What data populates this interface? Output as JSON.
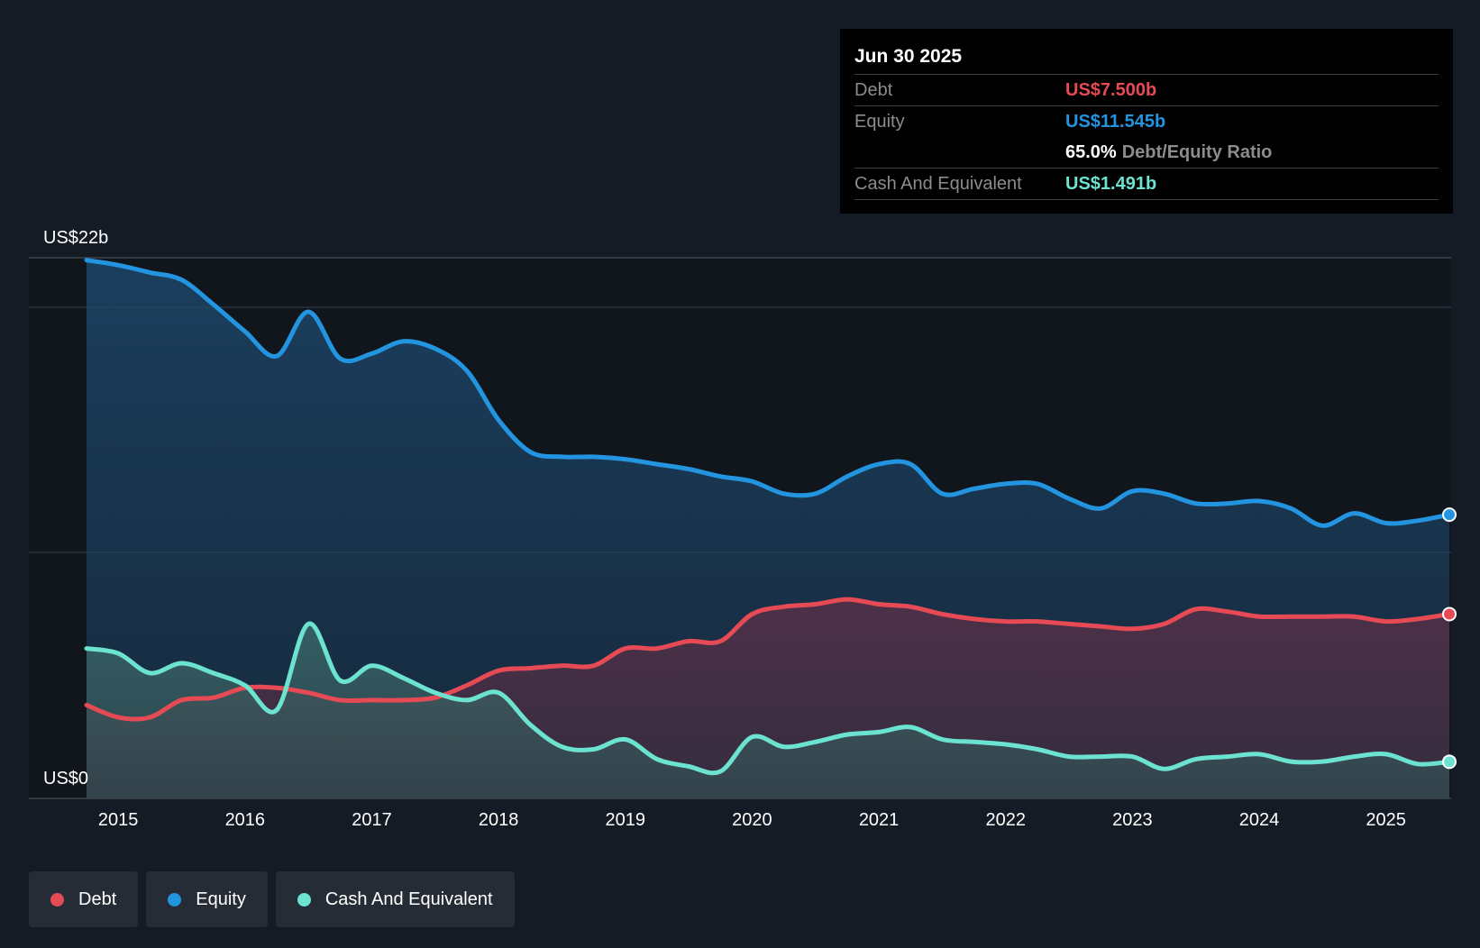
{
  "tooltip": {
    "date": "Jun 30 2025",
    "debt_label": "Debt",
    "debt_value": "US$7.500b",
    "equity_label": "Equity",
    "equity_value": "US$11.545b",
    "ratio_value": "65.0%",
    "ratio_label": "Debt/Equity Ratio",
    "cash_label": "Cash And Equivalent",
    "cash_value": "US$1.491b"
  },
  "legend": {
    "debt": "Debt",
    "equity": "Equity",
    "cash": "Cash And Equivalent"
  },
  "colors": {
    "background": "#151b24",
    "debt": "#e64b55",
    "equity": "#2394df",
    "cash": "#6ce3d0"
  },
  "chart_data": {
    "type": "area",
    "title": "",
    "xlabel": "",
    "ylabel": "",
    "x_ticks": [
      "2015",
      "2016",
      "2017",
      "2018",
      "2019",
      "2020",
      "2021",
      "2022",
      "2023",
      "2024",
      "2025"
    ],
    "y_axis_labels": {
      "top": "US$22b",
      "bottom": "US$0"
    },
    "ylim": [
      0,
      22
    ],
    "xlim": [
      2014.75,
      2025.5
    ],
    "grid": true,
    "series": [
      {
        "name": "Equity",
        "color_key": "equity",
        "x": [
          2014.75,
          2015.0,
          2015.25,
          2015.5,
          2015.75,
          2016.0,
          2016.25,
          2016.5,
          2016.75,
          2017.0,
          2017.25,
          2017.5,
          2017.75,
          2018.0,
          2018.25,
          2018.5,
          2018.75,
          2019.0,
          2019.25,
          2019.5,
          2019.75,
          2020.0,
          2020.25,
          2020.5,
          2020.75,
          2021.0,
          2021.25,
          2021.5,
          2021.75,
          2022.0,
          2022.25,
          2022.5,
          2022.75,
          2023.0,
          2023.25,
          2023.5,
          2023.75,
          2024.0,
          2024.25,
          2024.5,
          2024.75,
          2025.0,
          2025.25,
          2025.5
        ],
        "values": [
          21.9,
          21.7,
          21.4,
          21.1,
          20.1,
          19.0,
          18.0,
          19.8,
          17.9,
          18.1,
          18.6,
          18.3,
          17.4,
          15.4,
          14.1,
          13.9,
          13.9,
          13.8,
          13.6,
          13.4,
          13.1,
          12.9,
          12.4,
          12.4,
          13.1,
          13.6,
          13.6,
          12.4,
          12.6,
          12.8,
          12.8,
          12.2,
          11.8,
          12.5,
          12.4,
          12.0,
          12.0,
          12.1,
          11.8,
          11.1,
          11.6,
          11.2,
          11.3,
          11.545
        ]
      },
      {
        "name": "Debt",
        "color_key": "debt",
        "x": [
          2014.75,
          2015.0,
          2015.25,
          2015.5,
          2015.75,
          2016.0,
          2016.25,
          2016.5,
          2016.75,
          2017.0,
          2017.25,
          2017.5,
          2017.75,
          2018.0,
          2018.25,
          2018.5,
          2018.75,
          2019.0,
          2019.25,
          2019.5,
          2019.75,
          2020.0,
          2020.25,
          2020.5,
          2020.75,
          2021.0,
          2021.25,
          2021.5,
          2021.75,
          2022.0,
          2022.25,
          2022.5,
          2022.75,
          2023.0,
          2023.25,
          2023.5,
          2023.75,
          2024.0,
          2024.25,
          2024.5,
          2024.75,
          2025.0,
          2025.25,
          2025.5
        ],
        "values": [
          3.8,
          3.3,
          3.3,
          4.0,
          4.1,
          4.5,
          4.5,
          4.3,
          4.0,
          4.0,
          4.0,
          4.1,
          4.6,
          5.2,
          5.3,
          5.4,
          5.4,
          6.1,
          6.1,
          6.4,
          6.4,
          7.5,
          7.8,
          7.9,
          8.1,
          7.9,
          7.8,
          7.5,
          7.3,
          7.2,
          7.2,
          7.1,
          7.0,
          6.9,
          7.1,
          7.7,
          7.6,
          7.4,
          7.4,
          7.4,
          7.4,
          7.2,
          7.3,
          7.5
        ]
      },
      {
        "name": "Cash And Equivalent",
        "color_key": "cash",
        "x": [
          2014.75,
          2015.0,
          2015.25,
          2015.5,
          2015.75,
          2016.0,
          2016.25,
          2016.5,
          2016.75,
          2017.0,
          2017.25,
          2017.5,
          2017.75,
          2018.0,
          2018.25,
          2018.5,
          2018.75,
          2019.0,
          2019.25,
          2019.5,
          2019.75,
          2020.0,
          2020.25,
          2020.5,
          2020.75,
          2021.0,
          2021.25,
          2021.5,
          2021.75,
          2022.0,
          2022.25,
          2022.5,
          2022.75,
          2023.0,
          2023.25,
          2023.5,
          2023.75,
          2024.0,
          2024.25,
          2024.5,
          2024.75,
          2025.0,
          2025.25,
          2025.5
        ],
        "values": [
          6.1,
          5.9,
          5.1,
          5.5,
          5.1,
          4.6,
          3.6,
          7.1,
          4.8,
          5.4,
          4.9,
          4.3,
          4.0,
          4.3,
          3.0,
          2.1,
          2.0,
          2.4,
          1.6,
          1.3,
          1.1,
          2.5,
          2.1,
          2.3,
          2.6,
          2.7,
          2.9,
          2.4,
          2.3,
          2.2,
          2.0,
          1.7,
          1.7,
          1.7,
          1.2,
          1.6,
          1.7,
          1.8,
          1.5,
          1.5,
          1.7,
          1.8,
          1.4,
          1.491
        ]
      }
    ]
  }
}
